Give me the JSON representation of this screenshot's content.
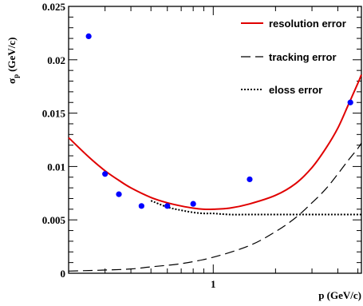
{
  "chart_data": {
    "type": "line",
    "title": "",
    "xlabel": "p (GeV/c)",
    "ylabel_main": "σ",
    "ylabel_sub": "p",
    "ylabel_unit": "(GeV/c)",
    "xscale": "log",
    "xlim": [
      0.2,
      5.2
    ],
    "ylim": [
      0,
      0.025
    ],
    "grid": false,
    "legend_position": "top-right",
    "x_tick_labels": [
      {
        "value": 1,
        "label": "1"
      }
    ],
    "y_tick_labels": [
      {
        "value": 0,
        "label": "0"
      },
      {
        "value": 0.005,
        "label": "0.005"
      },
      {
        "value": 0.01,
        "label": "0.01"
      },
      {
        "value": 0.015,
        "label": "0.015"
      },
      {
        "value": 0.02,
        "label": "0.02"
      },
      {
        "value": 0.025,
        "label": "0.025"
      }
    ],
    "series": [
      {
        "name": "resolution error",
        "style": "solid",
        "color": "#e00000",
        "x": [
          0.2,
          0.25,
          0.3,
          0.35,
          0.4,
          0.5,
          0.6,
          0.7,
          0.8,
          0.9,
          1.0,
          1.2,
          1.5,
          2.0,
          2.5,
          3.0,
          3.5,
          4.0,
          4.5,
          5.0,
          5.2
        ],
        "y": [
          0.0127,
          0.0109,
          0.0096,
          0.0087,
          0.008,
          0.0071,
          0.0066,
          0.0063,
          0.0061,
          0.006,
          0.006,
          0.0061,
          0.0065,
          0.0073,
          0.0084,
          0.0099,
          0.0117,
          0.0136,
          0.0158,
          0.0178,
          0.0186
        ]
      },
      {
        "name": "tracking error",
        "style": "dashed",
        "color": "#000000",
        "x": [
          0.2,
          0.3,
          0.4,
          0.5,
          0.7,
          1.0,
          1.5,
          2.0,
          2.5,
          3.0,
          3.5,
          4.0,
          4.5,
          5.0,
          5.2
        ],
        "y": [
          0.0002,
          0.0003,
          0.0004,
          0.0006,
          0.0009,
          0.0015,
          0.0026,
          0.0039,
          0.0052,
          0.0066,
          0.0079,
          0.0093,
          0.0106,
          0.0117,
          0.0122
        ]
      },
      {
        "name": "eloss error",
        "style": "dotted",
        "color": "#000000",
        "x": [
          0.5,
          0.6,
          0.7,
          0.8,
          0.9,
          1.0,
          1.2,
          1.5,
          2.0,
          3.0,
          4.0,
          5.2
        ],
        "y": [
          0.0068,
          0.0062,
          0.0059,
          0.0057,
          0.0056,
          0.0056,
          0.0055,
          0.0055,
          0.0055,
          0.0055,
          0.0055,
          0.0055
        ]
      }
    ],
    "points": {
      "color": "#0000ff",
      "x": [
        0.25,
        0.3,
        0.35,
        0.45,
        0.6,
        0.8,
        1.5,
        4.6
      ],
      "y": [
        0.0222,
        0.0093,
        0.0074,
        0.0063,
        0.0063,
        0.0065,
        0.0088,
        0.016
      ]
    }
  }
}
